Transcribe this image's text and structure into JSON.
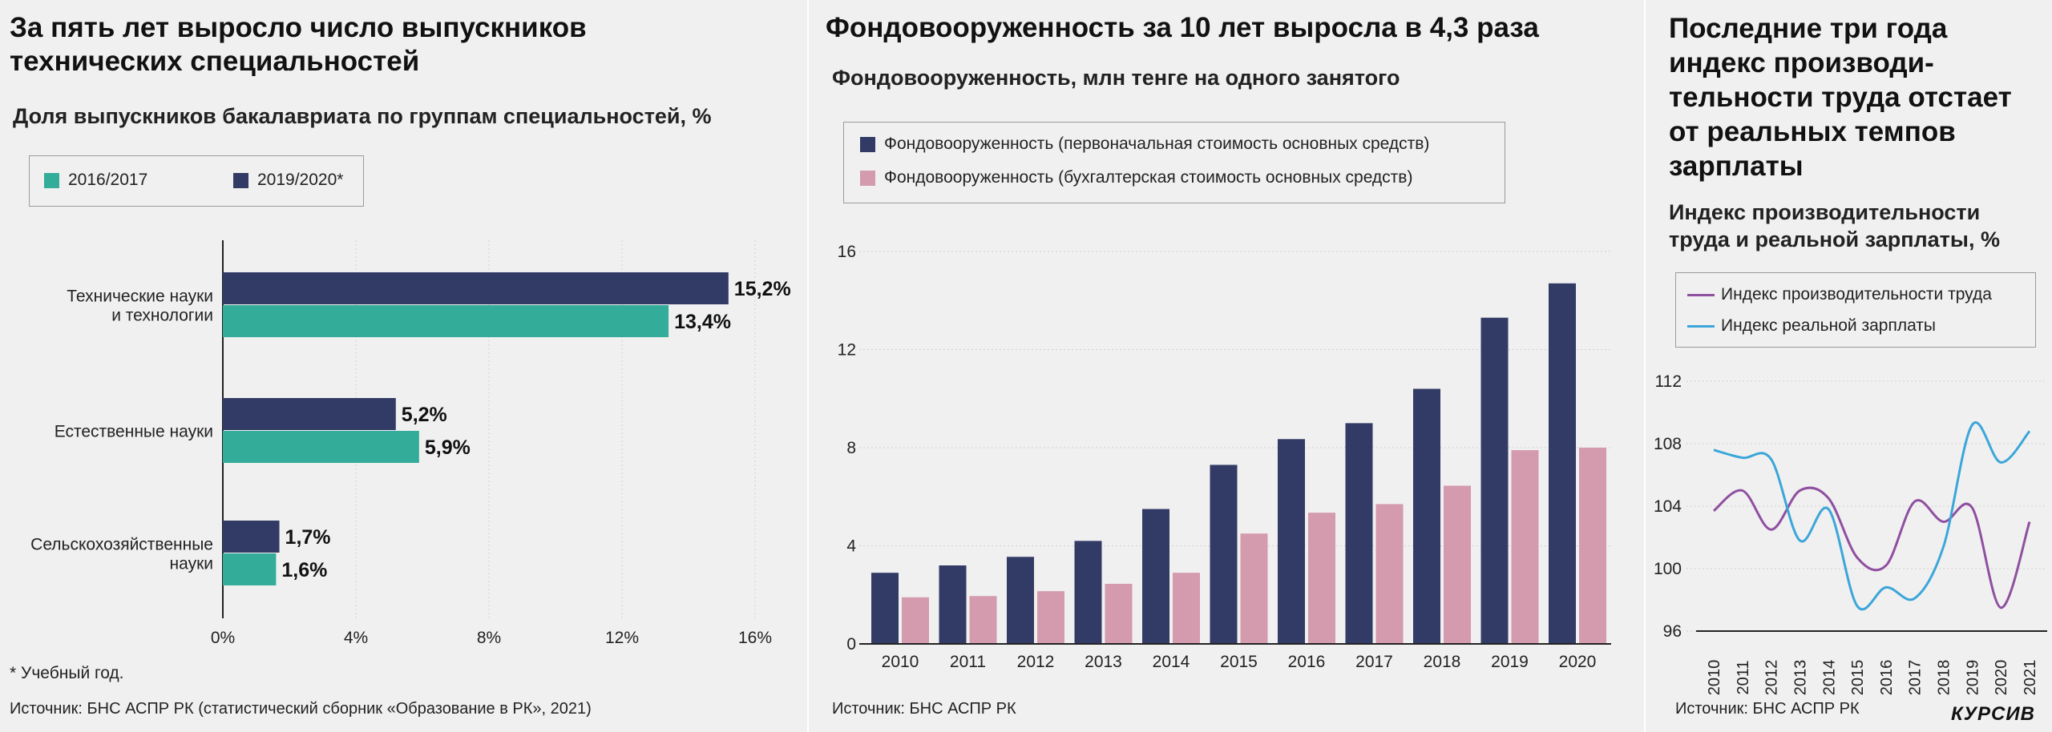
{
  "colors": {
    "navy": "#323b66",
    "teal": "#33ad99",
    "pink": "#d49aad",
    "purple": "#8f4fa0",
    "blue": "#3ba6d9"
  },
  "panel1": {
    "title_line1": "За пять лет выросло число выпускников",
    "title_line2": "технических специальностей",
    "subtitle": "Доля выпускников бакалавриата по группам специальностей, %",
    "footnote": "* Учебный год.",
    "source": "Источник: БНС АСПР РК (статистический сборник «Образование в РК», 2021)"
  },
  "panel2": {
    "title": "Фондовооруженность за 10 лет выросла в 4,3 раза",
    "subtitle": "Фондовооруженность, млн тенге на одного занятого",
    "source": "Источник: БНС АСПР РК"
  },
  "panel3": {
    "title_lines": [
      "Последние три года",
      "индекс производи-",
      "тельности труда отстает",
      "от реальных темпов",
      "зарплаты"
    ],
    "subtitle_lines": [
      "Индекс производительности",
      "труда и реальной зарплаты, %"
    ],
    "source": "Источник: БНС АСПР РК",
    "logo": "КУРСИВ"
  },
  "chart_data": [
    {
      "type": "bar",
      "orientation": "horizontal",
      "categories": [
        [
          "Технические науки",
          "и технологии"
        ],
        [
          "Естественные науки"
        ],
        [
          "Сельскохозяйственные",
          "науки"
        ]
      ],
      "series": [
        {
          "name": "2019/2020*",
          "values": [
            15.2,
            5.2,
            1.7
          ],
          "labels": [
            "15,2%",
            "5,2%",
            "1,7%"
          ],
          "color": "#323b66"
        },
        {
          "name": "2016/2017",
          "values": [
            13.4,
            5.9,
            1.6
          ],
          "labels": [
            "13,4%",
            "5,9%",
            "1,6%"
          ],
          "color": "#33ad99"
        }
      ],
      "legend": [
        "2016/2017",
        "2019/2020*"
      ],
      "xlim": [
        0,
        16
      ],
      "xticks": [
        "0%",
        "4%",
        "8%",
        "12%",
        "16%"
      ],
      "xtick_values": [
        0,
        4,
        8,
        12,
        16
      ],
      "grid": true
    },
    {
      "type": "bar",
      "categories": [
        "2010",
        "2011",
        "2012",
        "2013",
        "2014",
        "2015",
        "2016",
        "2017",
        "2018",
        "2019",
        "2020"
      ],
      "series": [
        {
          "name": "Фондовооруженность (первоначальная стоимость основных средств)",
          "values": [
            2.9,
            3.2,
            3.55,
            4.2,
            5.5,
            7.3,
            8.35,
            9.0,
            10.4,
            13.3,
            14.7
          ],
          "color": "#323b66"
        },
        {
          "name": "Фондовооруженность (бухгалтерская стоимость основных средств)",
          "values": [
            1.9,
            1.95,
            2.15,
            2.45,
            2.9,
            4.5,
            5.35,
            5.7,
            6.45,
            7.9,
            8.0
          ],
          "color": "#d49aad"
        }
      ],
      "ylim": [
        0,
        16
      ],
      "yticks": [
        "0",
        "4",
        "8",
        "12",
        "16"
      ],
      "ytick_values": [
        0,
        4,
        8,
        12,
        16
      ],
      "grid": true
    },
    {
      "type": "line",
      "x": [
        "2010",
        "2011",
        "2012",
        "2013",
        "2014",
        "2015",
        "2016",
        "2017",
        "2018",
        "2019",
        "2020",
        "2021"
      ],
      "series": [
        {
          "name": "Индекс производительности труда",
          "values": [
            103.7,
            105.0,
            102.5,
            105.0,
            104.5,
            100.7,
            100.2,
            104.3,
            103.0,
            103.9,
            97.5,
            103.0
          ],
          "color": "#8f4fa0"
        },
        {
          "name": "Индекс реальной зарплаты",
          "values": [
            107.6,
            107.1,
            107.0,
            101.8,
            103.8,
            97.6,
            98.8,
            98.1,
            101.4,
            109.2,
            106.8,
            108.8
          ],
          "color": "#3ba6d9"
        }
      ],
      "ylim": [
        96,
        112
      ],
      "yticks": [
        "96",
        "100",
        "104",
        "108",
        "112"
      ],
      "ytick_values": [
        96,
        100,
        104,
        108,
        112
      ],
      "grid": true
    }
  ]
}
